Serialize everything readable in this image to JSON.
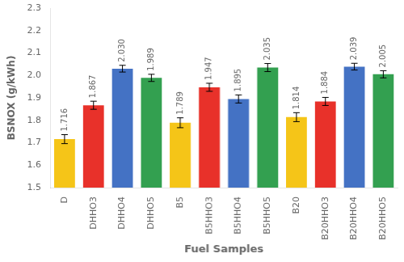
{
  "chart_data": [
    {
      "type": "bar",
      "categories": [
        "D",
        "DHHO3",
        "DHHO4",
        "DHHO5"
      ],
      "values": [
        1.716,
        1.867,
        2.03,
        1.989
      ],
      "value_labels": [
        "1.716",
        "1.867",
        "2.030",
        "1.989"
      ],
      "errors": [
        0.02,
        0.018,
        0.015,
        0.016
      ],
      "colors": [
        "#F5C518",
        "#E8312A",
        "#4472C4",
        "#33A050"
      ],
      "ylabel": "BSNOX (g/kWh)",
      "ylim": [
        1.5,
        2.3
      ],
      "yticks": [
        1.5,
        1.6,
        1.7,
        1.8,
        1.9,
        {
          "value": 2.0,
          "label": "2.0"
        },
        2.1,
        2.2,
        2.3
      ],
      "data_labels": true,
      "grid": false
    },
    {
      "type": "bar",
      "categories": [
        "B5",
        "B5HHO3",
        "B5HHO4",
        "B5HHO5"
      ],
      "values": [
        1.789,
        1.947,
        1.895,
        2.035
      ],
      "value_labels": [
        "1.789",
        "1.947",
        "1.895",
        "2.035"
      ],
      "errors": [
        0.022,
        0.018,
        0.018,
        0.018
      ],
      "colors": [
        "#F5C518",
        "#E8312A",
        "#4472C4",
        "#33A050"
      ],
      "xlabel": "Fuel Samples",
      "ylim": [
        1.5,
        2.3
      ],
      "yticks": [
        1.5,
        1.6,
        1.7,
        1.8,
        1.9,
        {
          "value": 2.0,
          "label": "2.0"
        },
        2.1,
        2.2,
        2.3
      ],
      "tick_labels": "x",
      "data_labels": true,
      "grid": false
    },
    {
      "type": "bar",
      "categories": [
        "B20",
        "B20HHO3",
        "B20HHO4",
        "B20HHO5"
      ],
      "values": [
        1.814,
        1.884,
        2.039,
        2.005
      ],
      "value_labels": [
        "1.814",
        "1.884",
        "2.039",
        "2.005"
      ],
      "errors": [
        0.02,
        0.018,
        0.015,
        0.016
      ],
      "colors": [
        "#F5C518",
        "#E8312A",
        "#4472C4",
        "#33A050"
      ],
      "ylim": [
        1.5,
        2.3
      ],
      "yticks": [
        1.5,
        1.6,
        1.7,
        1.8,
        1.9,
        {
          "value": 2.0,
          "label": "2.0"
        },
        2.1,
        2.2,
        2.3
      ],
      "tick_labels": "x",
      "data_labels": true,
      "grid": false
    }
  ]
}
